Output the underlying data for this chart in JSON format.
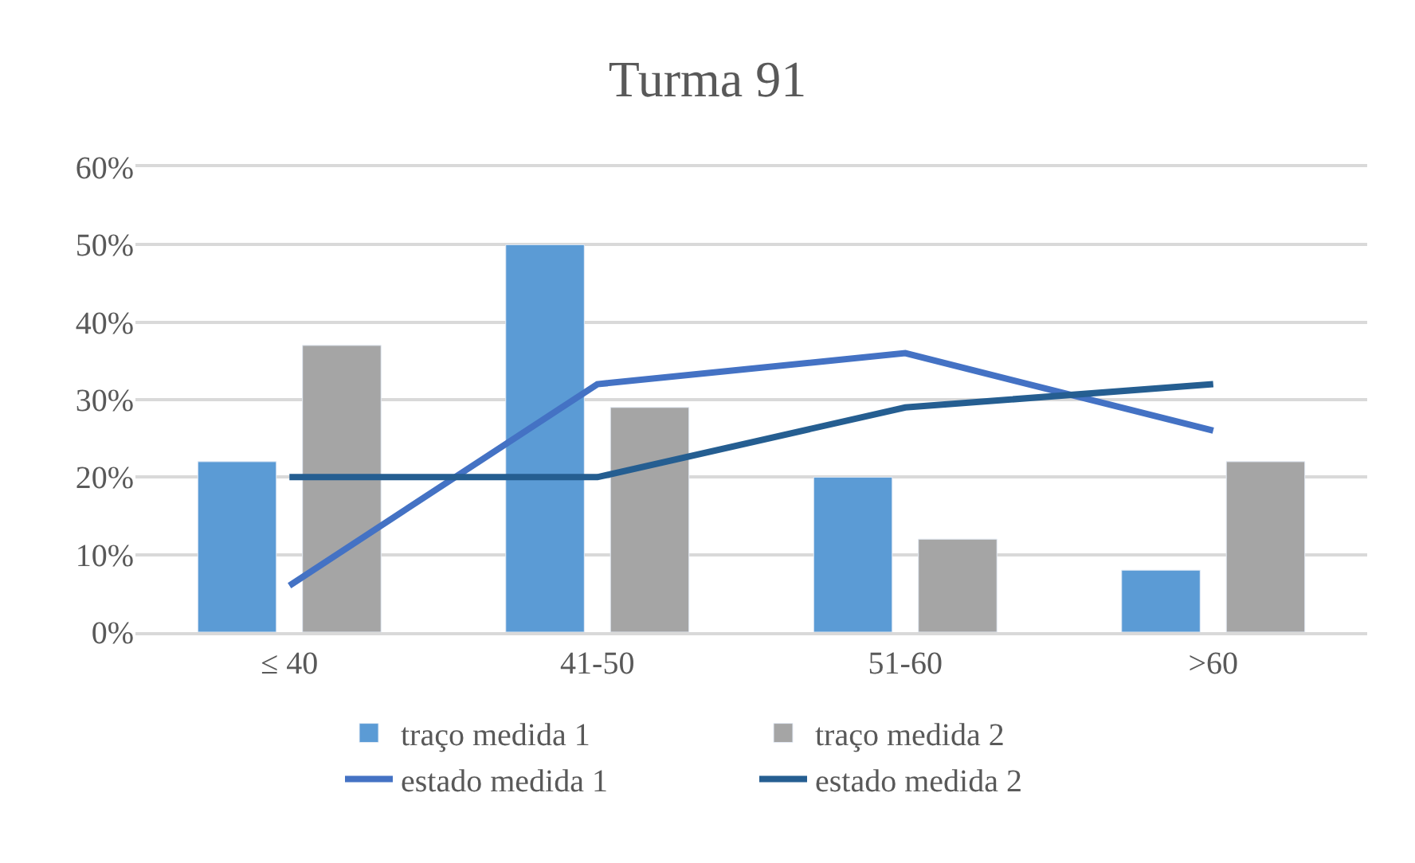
{
  "chart_data": {
    "type": "bar",
    "title": "Turma 91",
    "categories": [
      "≤ 40",
      "41-50",
      "51-60",
      ">60"
    ],
    "series": [
      {
        "name": "traço medida 1",
        "color": "#5b9bd5",
        "values": [
          22,
          50,
          20,
          8
        ]
      },
      {
        "name": "traço medida 2",
        "color": "#a5a5a5",
        "values": [
          37,
          29,
          12,
          22
        ]
      },
      {
        "name": "estado medida 1",
        "color": "#4472c4",
        "type": "line",
        "values": [
          6,
          32,
          36,
          26
        ]
      },
      {
        "name": "estado medida 2",
        "color": "#255e91",
        "type": "line",
        "values": [
          20,
          20,
          29,
          32
        ]
      }
    ],
    "ylim": [
      0,
      60
    ],
    "yticks": [
      {
        "value": 0,
        "label": "0%"
      },
      {
        "value": 10,
        "label": "10%"
      },
      {
        "value": 20,
        "label": "20%"
      },
      {
        "value": 30,
        "label": "30%"
      },
      {
        "value": 40,
        "label": "40%"
      },
      {
        "value": 50,
        "label": "50%"
      },
      {
        "value": 60,
        "label": "60%"
      }
    ],
    "grid": "y",
    "legend": "bottom",
    "marker": "none",
    "line_style": "solid"
  }
}
